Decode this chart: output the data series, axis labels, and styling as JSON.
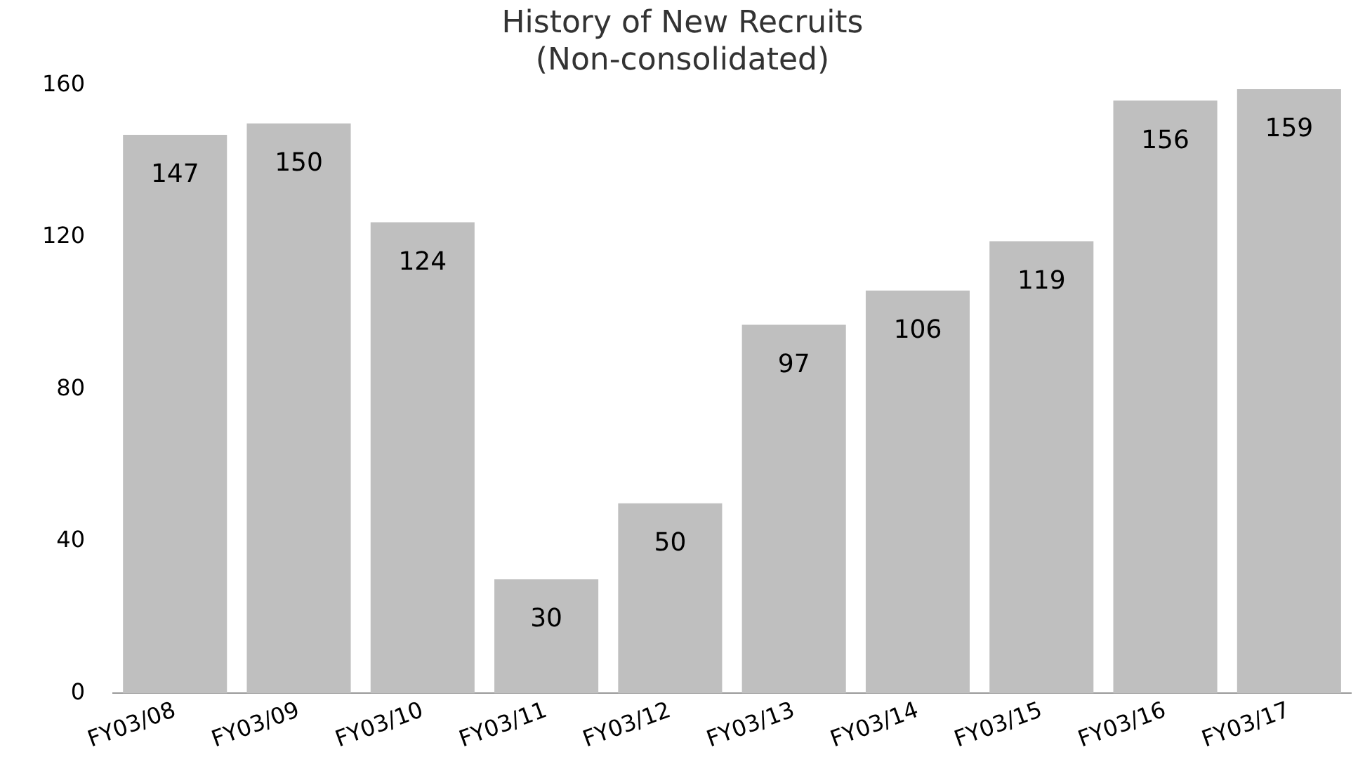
{
  "chart_data": {
    "type": "bar",
    "title": "History of New Recruits\n(Non-consolidated)",
    "categories": [
      "FY03/08",
      "FY03/09",
      "FY03/10",
      "FY03/11",
      "FY03/12",
      "FY03/13",
      "FY03/14",
      "FY03/15",
      "FY03/16",
      "FY03/17"
    ],
    "values": [
      147,
      150,
      124,
      30,
      50,
      97,
      106,
      119,
      156,
      159
    ],
    "color": "#bfbfbf",
    "ylim": [
      0,
      160
    ],
    "yticks": [
      0,
      40,
      80,
      120,
      160
    ],
    "grid": false,
    "legend": false,
    "data_labels": true
  }
}
